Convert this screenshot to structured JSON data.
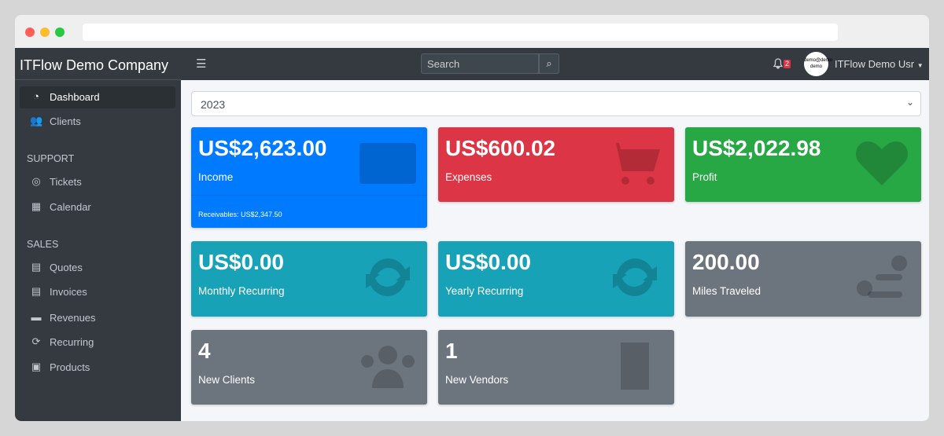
{
  "browser": {
    "dots": [
      "#ff5f57",
      "#febc2e",
      "#28c840"
    ]
  },
  "sidebar": {
    "brand": "ITFlow Demo Company",
    "items": [
      {
        "label": "Dashboard",
        "icon": "tachometer-icon"
      },
      {
        "label": "Clients",
        "icon": "users-icon"
      }
    ],
    "support_header": "SUPPORT",
    "support": [
      {
        "label": "Tickets",
        "icon": "life-ring-icon"
      },
      {
        "label": "Calendar",
        "icon": "calendar-icon"
      }
    ],
    "sales_header": "SALES",
    "sales": [
      {
        "label": "Quotes",
        "icon": "file-icon"
      },
      {
        "label": "Invoices",
        "icon": "invoice-icon"
      },
      {
        "label": "Revenues",
        "icon": "credit-card-icon"
      },
      {
        "label": "Recurring",
        "icon": "sync-icon"
      },
      {
        "label": "Products",
        "icon": "box-icon"
      }
    ]
  },
  "navbar": {
    "search_placeholder": "Search",
    "notifications": "2",
    "avatar_text": "demo@demo demo",
    "user": "ITFlow Demo Usr"
  },
  "year": "2023",
  "cards": [
    {
      "value": "US$2,623.00",
      "label": "Income",
      "footer": "Receivables: US$2,347.50",
      "color": "#007bff",
      "icon": "credit-card-icon"
    },
    {
      "value": "US$600.02",
      "label": "Expenses",
      "color": "#dc3545",
      "icon": "cart-icon"
    },
    {
      "value": "US$2,022.98",
      "label": "Profit",
      "color": "#28a745",
      "icon": "heart-icon"
    },
    {
      "value": "US$0.00",
      "label": "Monthly Recurring",
      "color": "#17a2b8",
      "icon": "sync-icon"
    },
    {
      "value": "US$0.00",
      "label": "Yearly Recurring",
      "color": "#17a2b8",
      "icon": "sync-icon"
    },
    {
      "value": "200.00",
      "label": "Miles Traveled",
      "color": "#6c757d",
      "icon": "route-icon"
    },
    {
      "value": "4",
      "label": "New Clients",
      "color": "#6c757d",
      "icon": "users-icon"
    },
    {
      "value": "1",
      "label": "New Vendors",
      "color": "#6c757d",
      "icon": "building-icon"
    }
  ]
}
